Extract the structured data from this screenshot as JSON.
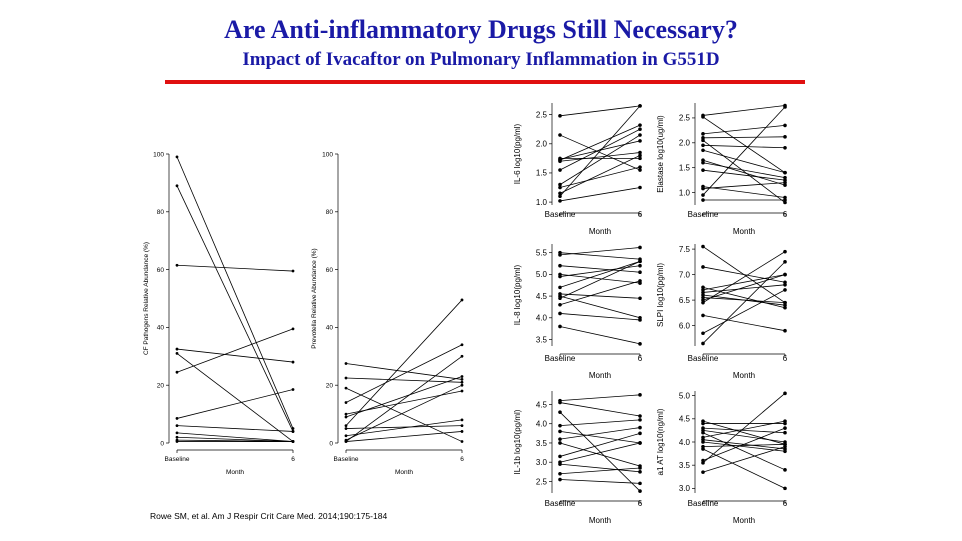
{
  "title": "Are Anti-inflammatory Drugs Still Necessary?",
  "subtitle": "Impact of Ivacaftor on Pulmonary Inflammation in G551D",
  "citation": "Rowe SM, et al. Am J Respir Crit Care Med. 2014;190:175-184",
  "colors": {
    "title": "#1a1aa6",
    "rule": "#e01010",
    "lines": "#000000"
  },
  "chart_data": [
    {
      "type": "line",
      "ylabel": "CF Pathogens Relative Abundance (%)",
      "xlabel": "Month",
      "x": [
        "Baseline",
        "6"
      ],
      "ylim": [
        0,
        100
      ],
      "yticks": [
        0,
        20,
        40,
        60,
        80,
        100
      ],
      "pairs": [
        [
          99,
          5
        ],
        [
          89,
          4
        ],
        [
          61.5,
          59.5
        ],
        [
          32.5,
          28
        ],
        [
          31,
          0.5
        ],
        [
          24.5,
          39.5
        ],
        [
          8.5,
          18.5
        ],
        [
          6,
          4
        ],
        [
          3.5,
          0.5
        ],
        [
          2,
          0.5
        ],
        [
          1,
          0.5
        ],
        [
          0.5,
          0.5
        ]
      ]
    },
    {
      "type": "line",
      "ylabel": "Prevotella Relative Abundance (%)",
      "xlabel": "Month",
      "x": [
        "Baseline",
        "6"
      ],
      "ylim": [
        0,
        100
      ],
      "yticks": [
        0,
        20,
        40,
        60,
        80,
        100
      ],
      "pairs": [
        [
          27.5,
          22
        ],
        [
          22.5,
          21
        ],
        [
          19,
          0.5
        ],
        [
          14,
          34
        ],
        [
          10,
          18
        ],
        [
          9,
          23
        ],
        [
          6,
          49.5
        ],
        [
          5,
          6
        ],
        [
          2.5,
          8
        ],
        [
          1,
          20
        ],
        [
          0.5,
          30
        ],
        [
          0.5,
          4
        ]
      ]
    },
    {
      "type": "line",
      "ylabel": "IL-6 log10(pg/ml)",
      "xlabel": "Month",
      "x": [
        "Baseline",
        "6"
      ],
      "ylim": [
        0.95,
        2.7
      ],
      "yticks": [
        1.0,
        1.5,
        2.0,
        2.5
      ],
      "pairs": [
        [
          2.48,
          2.65
        ],
        [
          2.15,
          1.55
        ],
        [
          1.75,
          1.75
        ],
        [
          1.73,
          2.05
        ],
        [
          1.72,
          2.32
        ],
        [
          1.7,
          1.85
        ],
        [
          1.55,
          2.25
        ],
        [
          1.3,
          2.15
        ],
        [
          1.25,
          1.6
        ],
        [
          1.15,
          1.8
        ],
        [
          1.1,
          2.65
        ],
        [
          1.02,
          1.25
        ]
      ]
    },
    {
      "type": "line",
      "ylabel": "Elastase log10(ug/ml)",
      "xlabel": "Month",
      "x": [
        "Baseline",
        "6"
      ],
      "ylim": [
        0.75,
        2.8
      ],
      "yticks": [
        1.0,
        1.5,
        2.0,
        2.5
      ],
      "pairs": [
        [
          2.55,
          2.75
        ],
        [
          2.52,
          1.4
        ],
        [
          2.18,
          2.35
        ],
        [
          2.1,
          2.12
        ],
        [
          2.05,
          0.8
        ],
        [
          1.95,
          1.9
        ],
        [
          1.85,
          1.4
        ],
        [
          1.65,
          1.15
        ],
        [
          1.6,
          1.3
        ],
        [
          1.45,
          1.25
        ],
        [
          1.12,
          0.9
        ],
        [
          1.08,
          1.2
        ],
        [
          0.95,
          2.72
        ],
        [
          0.85,
          0.85
        ]
      ]
    },
    {
      "type": "line",
      "ylabel": "IL-8 log10(pg/ml)",
      "xlabel": "Month",
      "x": [
        "Baseline",
        "6"
      ],
      "ylim": [
        3.35,
        5.7
      ],
      "yticks": [
        3.5,
        4.0,
        4.5,
        5.0,
        5.5
      ],
      "pairs": [
        [
          5.5,
          5.35
        ],
        [
          5.45,
          5.62
        ],
        [
          5.2,
          5.05
        ],
        [
          5.0,
          4.8
        ],
        [
          4.95,
          5.2
        ],
        [
          4.7,
          5.3
        ],
        [
          4.55,
          4.45
        ],
        [
          4.5,
          4.0
        ],
        [
          4.45,
          5.3
        ],
        [
          4.3,
          4.85
        ],
        [
          4.1,
          3.95
        ],
        [
          3.8,
          3.4
        ]
      ]
    },
    {
      "type": "line",
      "ylabel": "SLPI log10(pg/ml)",
      "xlabel": "Month",
      "x": [
        "Baseline",
        "6"
      ],
      "ylim": [
        5.6,
        7.6
      ],
      "yticks": [
        6.0,
        6.5,
        7.0,
        7.5
      ],
      "pairs": [
        [
          7.55,
          6.45
        ],
        [
          7.15,
          6.85
        ],
        [
          6.75,
          6.35
        ],
        [
          6.7,
          7.0
        ],
        [
          6.65,
          6.8
        ],
        [
          6.6,
          6.4
        ],
        [
          6.55,
          6.45
        ],
        [
          6.5,
          7.0
        ],
        [
          6.45,
          7.45
        ],
        [
          6.2,
          5.9
        ],
        [
          5.85,
          6.7
        ],
        [
          5.65,
          7.25
        ]
      ]
    },
    {
      "type": "line",
      "ylabel": "IL-1b log10(pg/ml)",
      "xlabel": "Month",
      "x": [
        "Baseline",
        "6"
      ],
      "ylim": [
        2.2,
        4.85
      ],
      "yticks": [
        2.5,
        3.0,
        3.5,
        4.0,
        4.5
      ],
      "pairs": [
        [
          4.6,
          4.75
        ],
        [
          4.55,
          4.2
        ],
        [
          4.3,
          2.25
        ],
        [
          3.95,
          4.1
        ],
        [
          3.8,
          3.5
        ],
        [
          3.6,
          3.9
        ],
        [
          3.5,
          2.9
        ],
        [
          3.15,
          3.75
        ],
        [
          3.0,
          3.5
        ],
        [
          2.95,
          2.75
        ],
        [
          2.7,
          2.85
        ],
        [
          2.55,
          2.45
        ]
      ]
    },
    {
      "type": "line",
      "ylabel": "a1 AT log10(ng/ml)",
      "xlabel": "Month",
      "x": [
        "Baseline",
        "6"
      ],
      "ylim": [
        2.9,
        5.1
      ],
      "yticks": [
        3.0,
        3.5,
        4.0,
        4.5,
        5.0
      ],
      "pairs": [
        [
          4.45,
          3.95
        ],
        [
          4.4,
          4.4
        ],
        [
          4.3,
          4.2
        ],
        [
          4.25,
          4.0
        ],
        [
          4.2,
          3.4
        ],
        [
          4.1,
          4.45
        ],
        [
          4.05,
          3.85
        ],
        [
          4.0,
          3.8
        ],
        [
          3.9,
          3.95
        ],
        [
          3.85,
          3.0
        ],
        [
          3.6,
          4.3
        ],
        [
          3.55,
          5.05
        ],
        [
          3.35,
          3.9
        ]
      ]
    }
  ]
}
